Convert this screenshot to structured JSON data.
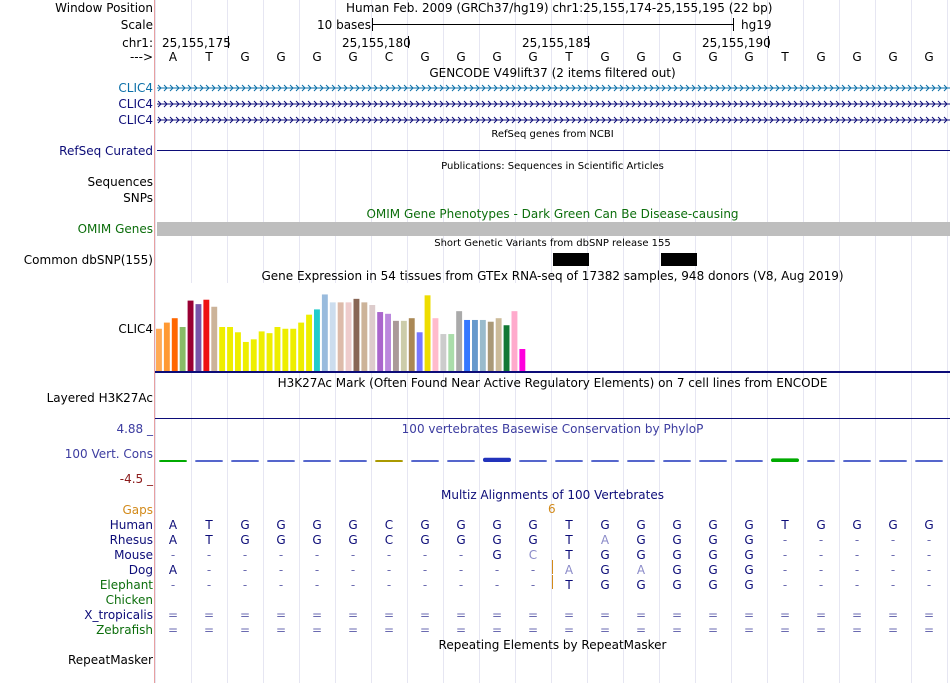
{
  "position_label": "Window Position",
  "position_text": "Human Feb. 2009 (GRCh37/hg19)   chr1:25,155,174-25,155,195 (22 bp)",
  "scale_label": "Scale",
  "scale_left": "10 bases",
  "scale_right": "hg19",
  "chr_label": "chr1:",
  "coords": [
    "25,155,175",
    "25,155,180",
    "25,155,185",
    "25,155,190"
  ],
  "strand_label": "--->",
  "sequence": [
    "A",
    "T",
    "G",
    "G",
    "G",
    "G",
    "C",
    "G",
    "G",
    "G",
    "G",
    "T",
    "G",
    "G",
    "G",
    "G",
    "G",
    "T",
    "G",
    "G",
    "G",
    "G"
  ],
  "gencode_title": "GENCODE V49lift37 (2 items filtered out)",
  "gencode_items": [
    "CLIC4",
    "CLIC4",
    "CLIC4"
  ],
  "refseq_title": "RefSeq genes from NCBI",
  "refseq_label": "RefSeq Curated",
  "pubs_title": "Publications: Sequences in Scientific Articles",
  "pubs_labels": [
    "Sequences",
    "SNPs"
  ],
  "omim_title": "OMIM Gene Phenotypes - Dark Green Can Be Disease-causing",
  "omim_label": "OMIM Genes",
  "dbsnp_title": "Short Genetic Variants from dbSNP release 155",
  "dbsnp_label": "Common dbSNP(155)",
  "gtex_title": "Gene Expression in 54 tissues from GTEx RNA-seq of 17382 samples, 948 donors (V8, Aug 2019)",
  "gtex_label": "CLIC4",
  "h3k27_title": "H3K27Ac Mark (Often Found Near Active Regulatory Elements) on 7 cell lines from ENCODE",
  "h3k27_label": "Layered H3K27Ac",
  "cons_title": "100 vertebrates Basewise Conservation by PhyloP",
  "cons_label": "100 Vert. Cons",
  "cons_max": "4.88 _",
  "cons_min": "-4.5 _",
  "multiz_title": "Multiz Alignments of 100 Vertebrates",
  "gaps_label": "Gaps",
  "gaps_count": "6",
  "species": [
    {
      "name": "Human",
      "color": "#0c0c78",
      "seq": [
        "A",
        "T",
        "G",
        "G",
        "G",
        "G",
        "C",
        "G",
        "G",
        "G",
        "G",
        "T",
        "G",
        "G",
        "G",
        "G",
        "G",
        "T",
        "G",
        "G",
        "G",
        "G"
      ]
    },
    {
      "name": "Rhesus",
      "color": "#0c0c78",
      "seq": [
        "A",
        "T",
        "G",
        "G",
        "G",
        "G",
        "C",
        "G",
        "G",
        "G",
        "G",
        "T",
        "A",
        "G",
        "G",
        "G",
        "G",
        "-",
        "-",
        "-",
        "-",
        "-"
      ]
    },
    {
      "name": "Mouse",
      "color": "#0c0c78",
      "seq": [
        "-",
        "-",
        "-",
        "-",
        "-",
        "-",
        "-",
        "-",
        "-",
        "G",
        "C",
        "T",
        "G",
        "G",
        "G",
        "G",
        "G",
        "-",
        "-",
        "-",
        "-",
        "-"
      ]
    },
    {
      "name": "Dog",
      "color": "#0c0c78",
      "seq": [
        "A",
        "-",
        "-",
        "-",
        "-",
        "-",
        "-",
        "-",
        "-",
        "-",
        "-",
        "A",
        "G",
        "A",
        "G",
        "G",
        "G",
        "-",
        "-",
        "-",
        "-",
        "-"
      ]
    },
    {
      "name": "Elephant",
      "color": "#0c6e0c",
      "seq": [
        "-",
        "-",
        "-",
        "-",
        "-",
        "-",
        "-",
        "-",
        "-",
        "-",
        "-",
        "T",
        "G",
        "G",
        "G",
        "G",
        "G",
        "-",
        "-",
        "-",
        "-",
        "-"
      ]
    },
    {
      "name": "Chicken",
      "color": "#0c6e0c",
      "seq": []
    },
    {
      "name": "X_tropicalis",
      "color": "#0c0c78",
      "seq": [
        "=",
        "=",
        "=",
        "=",
        "=",
        "=",
        "=",
        "=",
        "=",
        "=",
        "=",
        "=",
        "=",
        "=",
        "=",
        "=",
        "=",
        "=",
        "=",
        "=",
        "=",
        "="
      ]
    },
    {
      "name": "Zebrafish",
      "color": "#0c6e0c",
      "seq": [
        "=",
        "=",
        "=",
        "=",
        "=",
        "=",
        "=",
        "=",
        "=",
        "=",
        "=",
        "=",
        "=",
        "=",
        "=",
        "=",
        "=",
        "=",
        "=",
        "=",
        "=",
        "="
      ]
    }
  ],
  "repeat_title": "Repeating Elements by RepeatMasker",
  "repeat_label": "RepeatMasker",
  "gtex_bars": [
    {
      "v": 0.48,
      "c": "#ffaa55"
    },
    {
      "v": 0.55,
      "c": "#ff9933"
    },
    {
      "v": 0.6,
      "c": "#ff6600"
    },
    {
      "v": 0.5,
      "c": "#88bb66"
    },
    {
      "v": 0.8,
      "c": "#990033"
    },
    {
      "v": 0.76,
      "c": "#7755aa"
    },
    {
      "v": 0.81,
      "c": "#ee1111"
    },
    {
      "v": 0.73,
      "c": "#ccb399"
    },
    {
      "v": 0.5,
      "c": "#eeee00"
    },
    {
      "v": 0.5,
      "c": "#eeee00"
    },
    {
      "v": 0.44,
      "c": "#eeee00"
    },
    {
      "v": 0.33,
      "c": "#eeee00"
    },
    {
      "v": 0.36,
      "c": "#eeee00"
    },
    {
      "v": 0.45,
      "c": "#eeee00"
    },
    {
      "v": 0.43,
      "c": "#eeee00"
    },
    {
      "v": 0.5,
      "c": "#eeee00"
    },
    {
      "v": 0.48,
      "c": "#eeee00"
    },
    {
      "v": 0.48,
      "c": "#eeee00"
    },
    {
      "v": 0.55,
      "c": "#eeee00"
    },
    {
      "v": 0.64,
      "c": "#eeee00"
    },
    {
      "v": 0.7,
      "c": "#22cccc"
    },
    {
      "v": 0.87,
      "c": "#99bbdd"
    },
    {
      "v": 0.78,
      "c": "#ccddee"
    },
    {
      "v": 0.78,
      "c": "#ddbbaa"
    },
    {
      "v": 0.78,
      "c": "#eecccc"
    },
    {
      "v": 0.82,
      "c": "#886655"
    },
    {
      "v": 0.78,
      "c": "#ccb399"
    },
    {
      "v": 0.75,
      "c": "#ddcccc"
    },
    {
      "v": 0.67,
      "c": "#aa66cc"
    },
    {
      "v": 0.65,
      "c": "#bb88dd"
    },
    {
      "v": 0.57,
      "c": "#aa9999"
    },
    {
      "v": 0.57,
      "c": "#ccccaa"
    },
    {
      "v": 0.6,
      "c": "#aa8855"
    },
    {
      "v": 0.44,
      "c": "#7777ff"
    },
    {
      "v": 0.86,
      "c": "#eedd00"
    },
    {
      "v": 0.6,
      "c": "#ffbbcc"
    },
    {
      "v": 0.42,
      "c": "#cccccc"
    },
    {
      "v": 0.42,
      "c": "#aaddaa"
    },
    {
      "v": 0.68,
      "c": "#aaaaaa"
    },
    {
      "v": 0.58,
      "c": "#3377ff"
    },
    {
      "v": 0.58,
      "c": "#6699cc"
    },
    {
      "v": 0.58,
      "c": "#99bbcc"
    },
    {
      "v": 0.56,
      "c": "#aa9977"
    },
    {
      "v": 0.6,
      "c": "#ccbb99"
    },
    {
      "v": 0.52,
      "c": "#117733"
    },
    {
      "v": 0.68,
      "c": "#ffaacc"
    },
    {
      "v": 0.25,
      "c": "#ff00dd"
    }
  ],
  "cons_marks": [
    {
      "v": 0.15,
      "c": "#00aa00"
    },
    {
      "v": 0.1,
      "c": "#5566cc"
    },
    {
      "v": 0.08,
      "c": "#5566cc"
    },
    {
      "v": 0.1,
      "c": "#5566cc"
    },
    {
      "v": 0.12,
      "c": "#5566cc"
    },
    {
      "v": 0.1,
      "c": "#5566cc"
    },
    {
      "v": 0.15,
      "c": "#aa9900"
    },
    {
      "v": 0.08,
      "c": "#5566cc"
    },
    {
      "v": 0.12,
      "c": "#5566cc"
    },
    {
      "v": 0.35,
      "c": "#2233bb"
    },
    {
      "v": 0.08,
      "c": "#5566cc"
    },
    {
      "v": 0,
      "c": "#5566cc"
    },
    {
      "v": 0.1,
      "c": "#5566cc"
    },
    {
      "v": 0.1,
      "c": "#5566cc"
    },
    {
      "v": 0.1,
      "c": "#5566cc"
    },
    {
      "v": 0,
      "c": "#5566cc"
    },
    {
      "v": 0,
      "c": "#5566cc"
    },
    {
      "v": 0.3,
      "c": "#00aa00"
    },
    {
      "v": 0,
      "c": "#5566cc"
    },
    {
      "v": 0.1,
      "c": "#5566cc"
    },
    {
      "v": 0.12,
      "c": "#5566cc"
    },
    {
      "v": 0.08,
      "c": "#5566cc"
    }
  ]
}
